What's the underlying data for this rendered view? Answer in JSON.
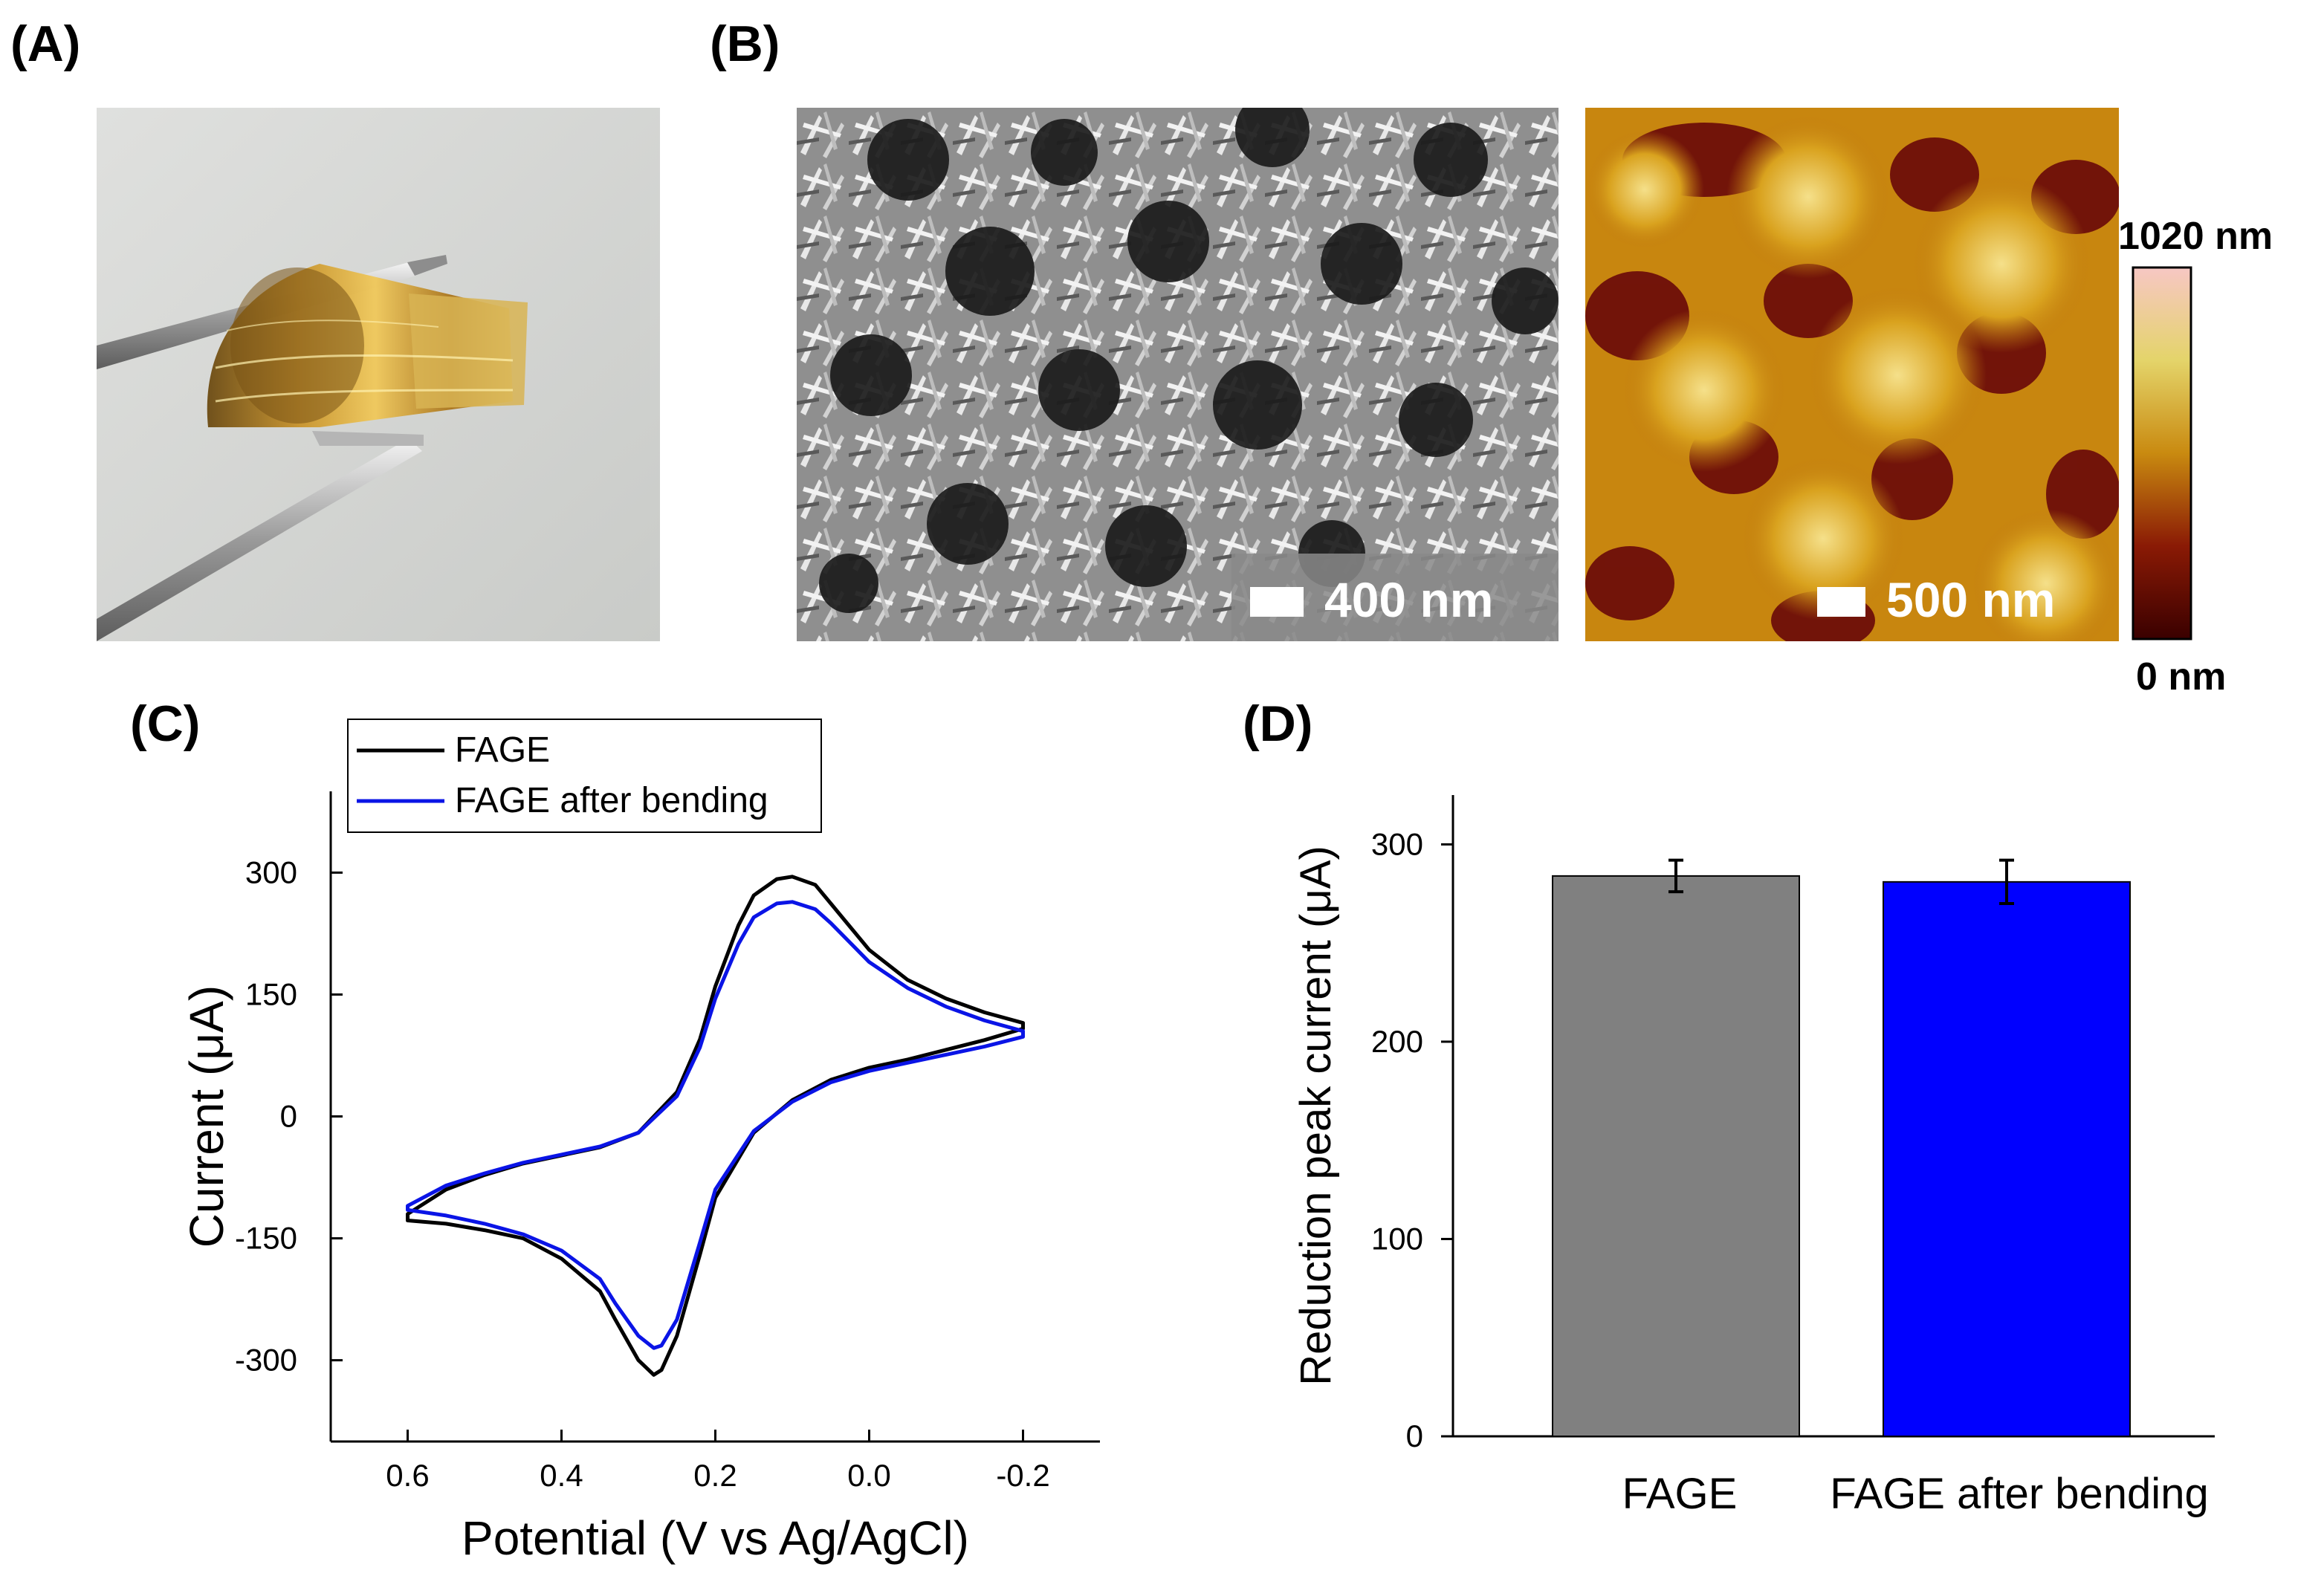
{
  "panels": {
    "a": {
      "label": "(A)"
    },
    "b": {
      "label": "(B)",
      "sem_scale": "400 nm",
      "afm_scale": "500 nm",
      "colorbar_max": "1020 nm",
      "colorbar_min": "0 nm"
    },
    "c": {
      "label": "(C)"
    },
    "d": {
      "label": "(D)"
    }
  },
  "colors": {
    "fage": "#000000",
    "bent": "#0a14e6",
    "bar_gray": "#808080",
    "bar_blue": "#0000ff"
  },
  "chart_data": [
    {
      "type": "line",
      "title": "",
      "xlabel": "Potential (V vs Ag/AgCl)",
      "ylabel": "Current (μA)",
      "xlim": [
        0.7,
        -0.3
      ],
      "ylim": [
        -400,
        400
      ],
      "xticks": [
        0.6,
        0.4,
        0.2,
        0.0,
        -0.2
      ],
      "xtick_labels": [
        "0.6",
        "0.4",
        "0.2",
        "0.0",
        "-0.2"
      ],
      "yticks": [
        300,
        150,
        0,
        -150,
        -300
      ],
      "ytick_labels": [
        "300",
        "150",
        "0",
        "-150",
        "-300"
      ],
      "legend": "top-left",
      "series": [
        {
          "name": "FAGE",
          "color": "#000000",
          "x": [
            0.6,
            0.55,
            0.5,
            0.45,
            0.4,
            0.35,
            0.3,
            0.25,
            0.22,
            0.2,
            0.17,
            0.15,
            0.12,
            0.1,
            0.07,
            0.05,
            0.0,
            -0.05,
            -0.1,
            -0.15,
            -0.2,
            -0.2,
            -0.15,
            -0.1,
            -0.05,
            0.0,
            0.05,
            0.1,
            0.15,
            0.2,
            0.22,
            0.25,
            0.27,
            0.28,
            0.3,
            0.33,
            0.35,
            0.4,
            0.45,
            0.5,
            0.55,
            0.6
          ],
          "y": [
            -120,
            -90,
            -72,
            -58,
            -48,
            -38,
            -20,
            30,
            95,
            160,
            235,
            272,
            292,
            295,
            285,
            262,
            205,
            168,
            145,
            128,
            115,
            108,
            94,
            82,
            70,
            60,
            45,
            20,
            -20,
            -100,
            -170,
            -270,
            -312,
            -318,
            -300,
            -250,
            -215,
            -175,
            -150,
            -140,
            -132,
            -128
          ]
        },
        {
          "name": "FAGE after bending",
          "color": "#0a14e6",
          "x": [
            0.6,
            0.55,
            0.5,
            0.45,
            0.4,
            0.35,
            0.3,
            0.25,
            0.22,
            0.2,
            0.17,
            0.15,
            0.12,
            0.1,
            0.07,
            0.05,
            0.0,
            -0.05,
            -0.1,
            -0.15,
            -0.2,
            -0.2,
            -0.15,
            -0.1,
            -0.05,
            0.0,
            0.05,
            0.1,
            0.15,
            0.2,
            0.22,
            0.25,
            0.27,
            0.28,
            0.3,
            0.33,
            0.35,
            0.4,
            0.45,
            0.5,
            0.55,
            0.6
          ],
          "y": [
            -110,
            -85,
            -70,
            -57,
            -47,
            -37,
            -20,
            25,
            85,
            145,
            212,
            245,
            262,
            264,
            255,
            238,
            190,
            158,
            135,
            118,
            105,
            98,
            86,
            76,
            66,
            56,
            42,
            18,
            -18,
            -90,
            -155,
            -250,
            -282,
            -285,
            -270,
            -230,
            -200,
            -165,
            -145,
            -132,
            -122,
            -115
          ]
        }
      ]
    },
    {
      "type": "bar",
      "title": "",
      "xlabel": "",
      "ylabel": "Reduction peak current (μA)",
      "ylim": [
        0,
        325
      ],
      "yticks": [
        0,
        100,
        200,
        300
      ],
      "ytick_labels": [
        "0",
        "100",
        "200",
        "300"
      ],
      "categories": [
        "FAGE",
        "FAGE after bending"
      ],
      "values": [
        284,
        281
      ],
      "errors": [
        8,
        11
      ],
      "colors": [
        "#808080",
        "#0000ff"
      ]
    }
  ]
}
